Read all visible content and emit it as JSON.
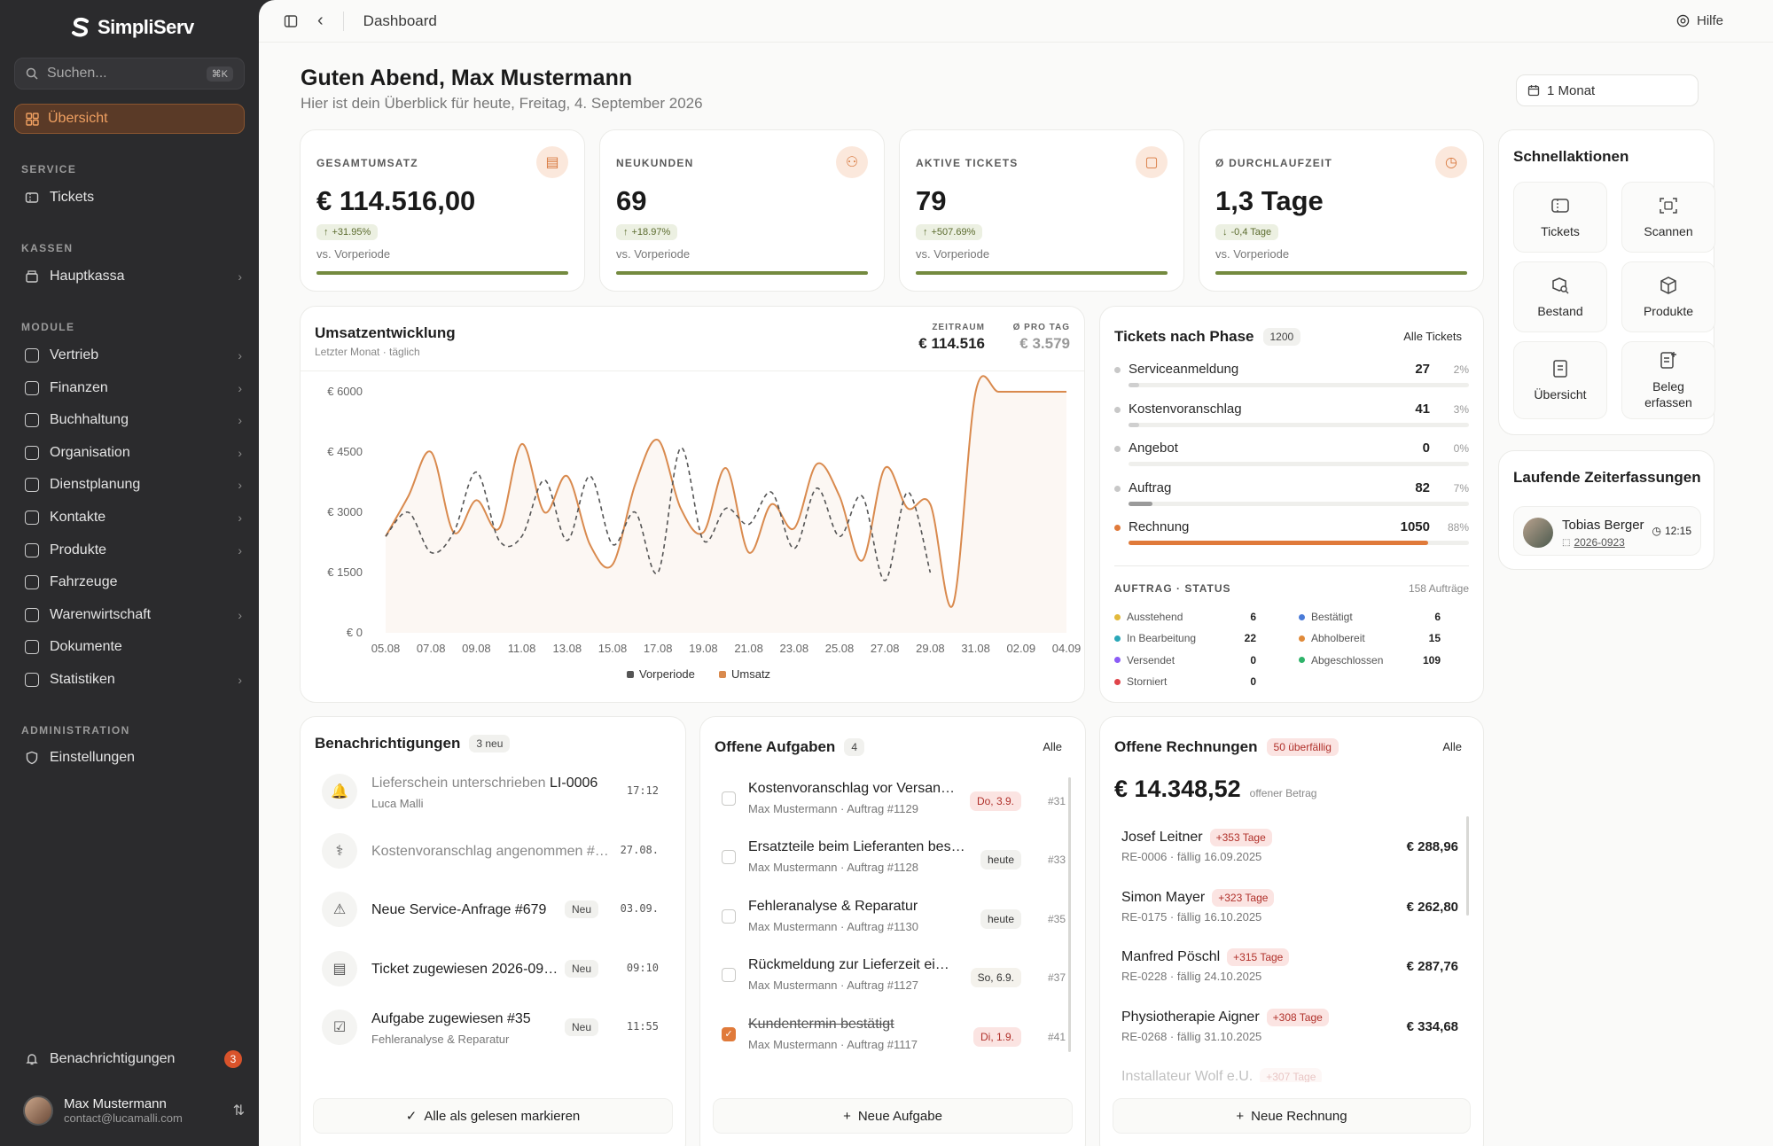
{
  "brand": "SimpliServ",
  "search": {
    "placeholder": "Suchen...",
    "shortcut": "⌘K"
  },
  "nav": {
    "active": "Übersicht",
    "sections": {
      "service": "SERVICE",
      "kassen": "KASSEN",
      "module": "MODULE",
      "admin": "ADMINISTRATION"
    },
    "tickets": "Tickets",
    "hauptkassa": "Hauptkassa",
    "modules": [
      "Vertrieb",
      "Finanzen",
      "Buchhaltung",
      "Organisation",
      "Dienstplanung",
      "Kontakte",
      "Produkte",
      "Fahrzeuge",
      "Warenwirtschaft",
      "Dokumente",
      "Statistiken"
    ],
    "einstellungen": "Einstellungen",
    "notifications": "Benachrichtigungen",
    "notifications_count": "3"
  },
  "user": {
    "name": "Max Mustermann",
    "email": "contact@lucamalli.com"
  },
  "topbar": {
    "title": "Dashboard",
    "help": "Hilfe"
  },
  "greeting": {
    "title": "Guten Abend, Max Mustermann",
    "subtitle": "Hier ist dein Überblick für heute, Freitag, 4. September 2026"
  },
  "range": "1 Monat",
  "kpis": [
    {
      "label": "GESAMTUMSATZ",
      "value": "€ 114.516,00",
      "change": "+31.95%",
      "vs": "vs. Vorperiode"
    },
    {
      "label": "NEUKUNDEN",
      "value": "69",
      "change": "+18.97%",
      "vs": "vs. Vorperiode"
    },
    {
      "label": "AKTIVE TICKETS",
      "value": "79",
      "change": "+507.69%",
      "vs": "vs. Vorperiode"
    },
    {
      "label": "Ø DURCHLAUFZEIT",
      "value": "1,3 Tage",
      "change": "-0,4 Tage",
      "vs": "vs. Vorperiode"
    }
  ],
  "revenue": {
    "title": "Umsatzentwicklung",
    "subtitle": "Letzter Monat · täglich",
    "zeitraum_label": "ZEITRAUM",
    "zeitraum_value": "€ 114.516",
    "pro_tag_label": "Ø PRO TAG",
    "pro_tag_value": "€ 3.579"
  },
  "chart_data": {
    "type": "line",
    "x": [
      "05.08",
      "06.08",
      "07.08",
      "08.08",
      "09.08",
      "10.08",
      "11.08",
      "12.08",
      "13.08",
      "14.08",
      "15.08",
      "16.08",
      "17.08",
      "18.08",
      "19.08",
      "20.08",
      "21.08",
      "22.08",
      "23.08",
      "24.08",
      "25.08",
      "26.08",
      "27.08",
      "28.08",
      "29.08",
      "30.08",
      "31.08",
      "01.09",
      "02.09",
      "03.09",
      "04.09"
    ],
    "xticks": [
      "05.08",
      "07.08",
      "09.08",
      "11.08",
      "13.08",
      "15.08",
      "17.08",
      "19.08",
      "21.08",
      "23.08",
      "25.08",
      "27.08",
      "29.08",
      "31.08",
      "02.09",
      "04.09"
    ],
    "yticks": [
      "€ 0",
      "€ 1500",
      "€ 3000",
      "€ 4500",
      "€ 6000"
    ],
    "ylim": [
      0,
      6000
    ],
    "series": [
      {
        "name": "Umsatz",
        "color": "#d98a4e",
        "values": [
          2400,
          3400,
          4500,
          2500,
          3300,
          2600,
          4700,
          3000,
          3900,
          2200,
          1700,
          3700,
          4800,
          3100,
          2500,
          4100,
          2000,
          3200,
          2600,
          4200,
          3400,
          1800,
          4100,
          3100,
          3200,
          700,
          6000,
          6000,
          6000,
          6000,
          6000
        ]
      },
      {
        "name": "Vorperiode",
        "color": "#555555",
        "values": [
          2400,
          3000,
          2000,
          2500,
          4000,
          2300,
          2400,
          3800,
          2300,
          3900,
          2200,
          3000,
          1500,
          4600,
          2300,
          3100,
          2700,
          3500,
          2100,
          3600,
          2400,
          3400,
          1300,
          3500,
          1500,
          null,
          null,
          null,
          null,
          null,
          null
        ]
      }
    ]
  },
  "phases": {
    "title": "Tickets nach Phase",
    "total": "1200",
    "link": "Alle Tickets",
    "rows": [
      {
        "name": "Serviceanmeldung",
        "count": "27",
        "pct": "2%",
        "value": 2
      },
      {
        "name": "Kostenvoranschlag",
        "count": "41",
        "pct": "3%",
        "value": 3
      },
      {
        "name": "Angebot",
        "count": "0",
        "pct": "0%",
        "value": 0
      },
      {
        "name": "Auftrag",
        "count": "82",
        "pct": "7%",
        "value": 7
      },
      {
        "name": "Rechnung",
        "count": "1050",
        "pct": "88%",
        "value": 88
      }
    ],
    "status_title": "AUFTRAG · STATUS",
    "status_total": "158 Aufträge",
    "status": [
      {
        "name": "Ausstehend",
        "count": "6",
        "color": "#e2b93b"
      },
      {
        "name": "Bestätigt",
        "count": "6",
        "color": "#4a7bd8"
      },
      {
        "name": "In Bearbeitung",
        "count": "22",
        "color": "#2aa7b8"
      },
      {
        "name": "Abholbereit",
        "count": "15",
        "color": "#e08a3a"
      },
      {
        "name": "Versendet",
        "count": "0",
        "color": "#8b5cf6"
      },
      {
        "name": "Abgeschlossen",
        "count": "109",
        "color": "#2fb36a"
      },
      {
        "name": "Storniert",
        "count": "0",
        "color": "#e0444a"
      }
    ]
  },
  "quick": {
    "title": "Schnellaktionen",
    "items": [
      "Tickets",
      "Scannen",
      "Bestand",
      "Produkte",
      "Übersicht",
      "Beleg erfassen"
    ]
  },
  "time_tracking": {
    "title": "Laufende Zeiterfassungen",
    "person": "Tobias Berger",
    "ticket": "2026-0923",
    "time": "12:15"
  },
  "notifications": {
    "title": "Benachrichtigungen",
    "badge": "3 neu",
    "items": [
      {
        "text": "Lieferschein unterschrieben ",
        "strong": "LI-0006",
        "sub": "Luca Malli",
        "time": "17:12",
        "neu": ""
      },
      {
        "text": "Kostenvoranschlag angenommen #…",
        "strong": "",
        "sub": "",
        "time": "27.08.",
        "neu": ""
      },
      {
        "text": "Neue Service-Anfrage #679",
        "strong": "",
        "sub": "",
        "time": "03.09.",
        "neu": "Neu"
      },
      {
        "text": "Ticket zugewiesen 2026-09…",
        "strong": "",
        "sub": "",
        "time": "09:10",
        "neu": "Neu"
      },
      {
        "text": "Aufgabe zugewiesen #35",
        "strong": "",
        "sub": "Fehleranalyse & Reparatur",
        "time": "11:55",
        "neu": "Neu"
      }
    ],
    "action": "Alle als gelesen markieren"
  },
  "tasks": {
    "title": "Offene Aufgaben",
    "badge": "4",
    "link": "Alle",
    "items": [
      {
        "text": "Kostenvoranschlag vor Versan…",
        "sub": "Max Mustermann · Auftrag #1129",
        "due": "Do, 3.9.",
        "num": "#31",
        "done": false
      },
      {
        "text": "Ersatzteile beim Lieferanten bes…",
        "sub": "Max Mustermann · Auftrag #1128",
        "due": "heute",
        "num": "#33",
        "done": false
      },
      {
        "text": "Fehleranalyse & Reparatur",
        "sub": "Max Mustermann · Auftrag #1130",
        "due": "heute",
        "num": "#35",
        "done": false
      },
      {
        "text": "Rückmeldung zur Lieferzeit ei…",
        "sub": "Max Mustermann · Auftrag #1127",
        "due": "So, 6.9.",
        "num": "#37",
        "done": false
      },
      {
        "text": "Kundentermin bestätigt",
        "sub": "Max Mustermann · Auftrag #1117",
        "due": "Di, 1.9.",
        "num": "#41",
        "done": true
      }
    ],
    "action": "Neue Aufgabe"
  },
  "invoices": {
    "title": "Offene Rechnungen",
    "badge": "50 überfällig",
    "link": "Alle",
    "amount": "€ 14.348,52",
    "amount_label": "offener Betrag",
    "items": [
      {
        "name": "Josef Leitner",
        "late": "+353 Tage",
        "sub": "RE-0006 · fällig 16.09.2025",
        "amount": "€ 288,96"
      },
      {
        "name": "Simon Mayer",
        "late": "+323 Tage",
        "sub": "RE-0175 · fällig 16.10.2025",
        "amount": "€ 262,80"
      },
      {
        "name": "Manfred Pöschl",
        "late": "+315 Tage",
        "sub": "RE-0228 · fällig 24.10.2025",
        "amount": "€ 287,76"
      },
      {
        "name": "Physiotherapie Aigner",
        "late": "+308 Tage",
        "sub": "RE-0268 · fällig 31.10.2025",
        "amount": "€ 334,68"
      },
      {
        "name": "Installateur Wolf e.U.",
        "late": "+307 Tage",
        "sub": "",
        "amount": ""
      }
    ],
    "action": "Neue Rechnung"
  }
}
